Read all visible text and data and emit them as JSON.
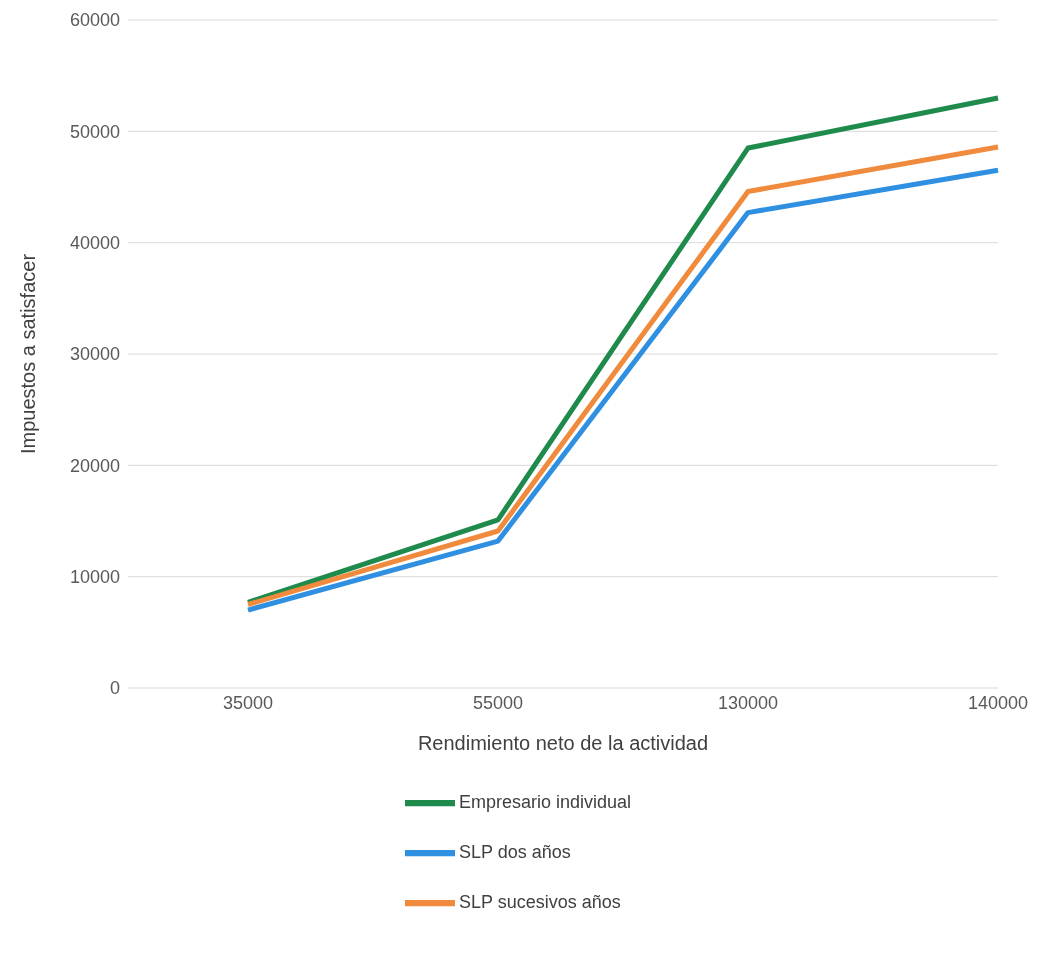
{
  "chart_data": {
    "type": "line",
    "xlabel": "Rendimiento neto de la actividad",
    "ylabel": "Impuestos a satisfacer",
    "categories": [
      "35000",
      "55000",
      "130000",
      "140000"
    ],
    "series": [
      {
        "name": "Empresario individual",
        "color": "#1e8a4c",
        "values": [
          7700,
          15100,
          48500,
          53000
        ]
      },
      {
        "name": "SLP dos años",
        "color": "#2f8fe0",
        "values": [
          7000,
          13200,
          42700,
          46500
        ]
      },
      {
        "name": "SLP sucesivos años",
        "color": "#f08a3c",
        "values": [
          7500,
          14100,
          44600,
          48600
        ]
      }
    ],
    "ylim": [
      0,
      60000
    ],
    "yticks": [
      0,
      10000,
      20000,
      30000,
      40000,
      50000,
      60000
    ],
    "grid": "y",
    "legend": "bottom",
    "marker": "none",
    "line_style": "solid"
  }
}
